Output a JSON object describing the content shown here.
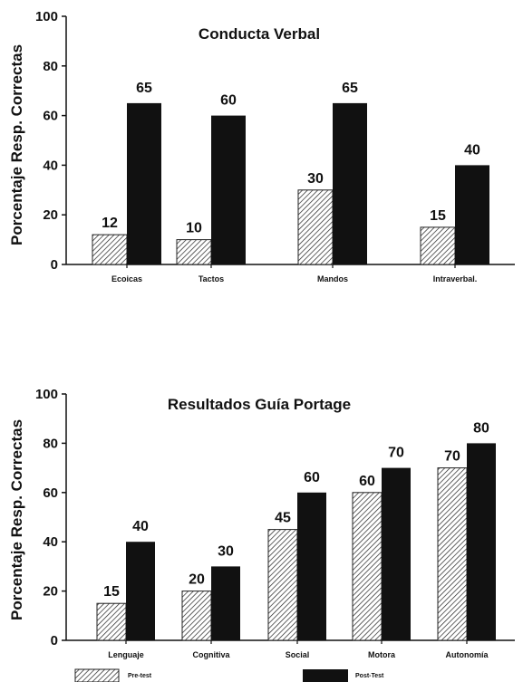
{
  "chart_data": [
    {
      "type": "bar",
      "title": "Conducta  Verbal",
      "ylabel": "Porcentaje Resp. Correctas",
      "ylim": [
        0,
        100
      ],
      "yticks": [
        0,
        20,
        40,
        60,
        80,
        100
      ],
      "categories": [
        "Ecoicas",
        "Tactos",
        "Mandos",
        "Intraverbal."
      ],
      "series": [
        {
          "values": [
            12,
            10,
            30,
            15
          ],
          "pattern": "hatched"
        },
        {
          "values": [
            65,
            60,
            65,
            40
          ],
          "color": "#111111"
        }
      ]
    },
    {
      "type": "bar",
      "title": "Resultados Guía Portage",
      "ylabel": "Porcentaje Resp. Correctas",
      "ylim": [
        0,
        100
      ],
      "yticks": [
        0,
        20,
        40,
        60,
        80,
        100
      ],
      "categories": [
        "Lenguaje",
        "Cognitiva",
        "Social",
        "Motora",
        "Autonomía"
      ],
      "series": [
        {
          "name": "Pre-test",
          "values": [
            15,
            20,
            45,
            60,
            70
          ],
          "pattern": "hatched"
        },
        {
          "name": "Post-Test",
          "values": [
            40,
            30,
            60,
            70,
            80
          ],
          "color": "#111111"
        }
      ],
      "legend": "bottom"
    }
  ]
}
